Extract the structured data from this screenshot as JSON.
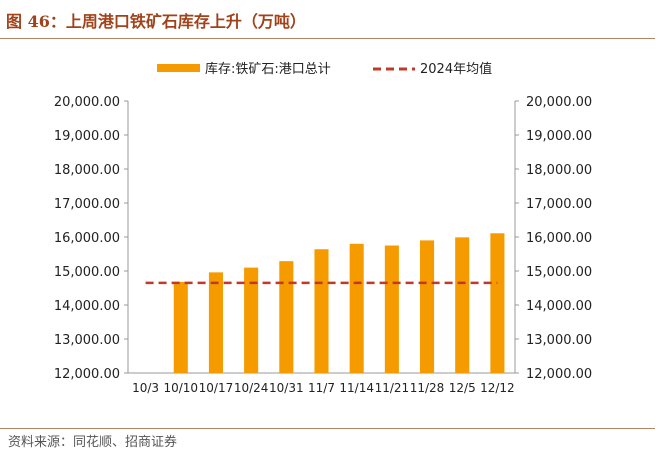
{
  "title": "图 46：上周港口铁矿石库存上升（万吨）",
  "source": "资料来源：同花顺、招商证券",
  "colors": {
    "bar": "#f59b00",
    "avg_line": "#c0392b",
    "title": "#a0421a"
  },
  "chart_data": {
    "type": "bar",
    "categories": [
      "10/3",
      "10/10",
      "10/17",
      "10/24",
      "10/31",
      "11/7",
      "11/14",
      "11/21",
      "11/28",
      "12/5",
      "12/12"
    ],
    "series": [
      {
        "name": "库存:铁矿石:港口总计",
        "type": "bar",
        "values": [
          null,
          14680,
          14960,
          15100,
          15290,
          15640,
          15800,
          15750,
          15900,
          15990,
          16110
        ]
      },
      {
        "name": "2024年均值",
        "type": "line",
        "style": "dashed",
        "values": [
          14650,
          14650,
          14650,
          14650,
          14650,
          14650,
          14650,
          14650,
          14650,
          14650,
          14650
        ]
      }
    ],
    "ylim": [
      12000,
      20000
    ],
    "yticks": [
      "12,000.00",
      "13,000.00",
      "14,000.00",
      "15,000.00",
      "16,000.00",
      "17,000.00",
      "18,000.00",
      "19,000.00",
      "20,000.00"
    ],
    "legend": [
      "库存:铁矿石:港口总计",
      "2024年均值"
    ],
    "legend_position": "top-center",
    "grid": false,
    "xlabel": "",
    "ylabel": ""
  }
}
